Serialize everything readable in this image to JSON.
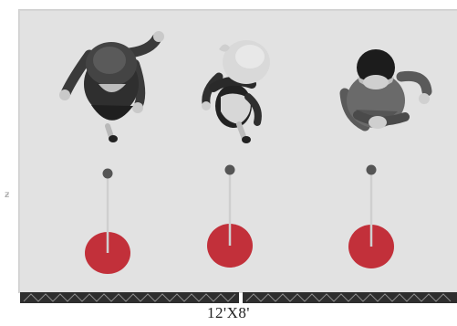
{
  "stage": {
    "size_label": "12'X8'",
    "side_mark": "ƶ",
    "colors": {
      "floor": "#e2e2e2",
      "truss": "#2e2e2e",
      "truss_lattice": "#8c8c8c",
      "mic_base": "#c2303a",
      "mic_pole": "#cfcfcf",
      "mic_head": "#555555"
    }
  },
  "performers": [
    {
      "name": "performer-left"
    },
    {
      "name": "performer-center"
    },
    {
      "name": "performer-right"
    }
  ],
  "mic_stands": [
    {
      "name": "mic-stand-left"
    },
    {
      "name": "mic-stand-center"
    },
    {
      "name": "mic-stand-right"
    }
  ]
}
